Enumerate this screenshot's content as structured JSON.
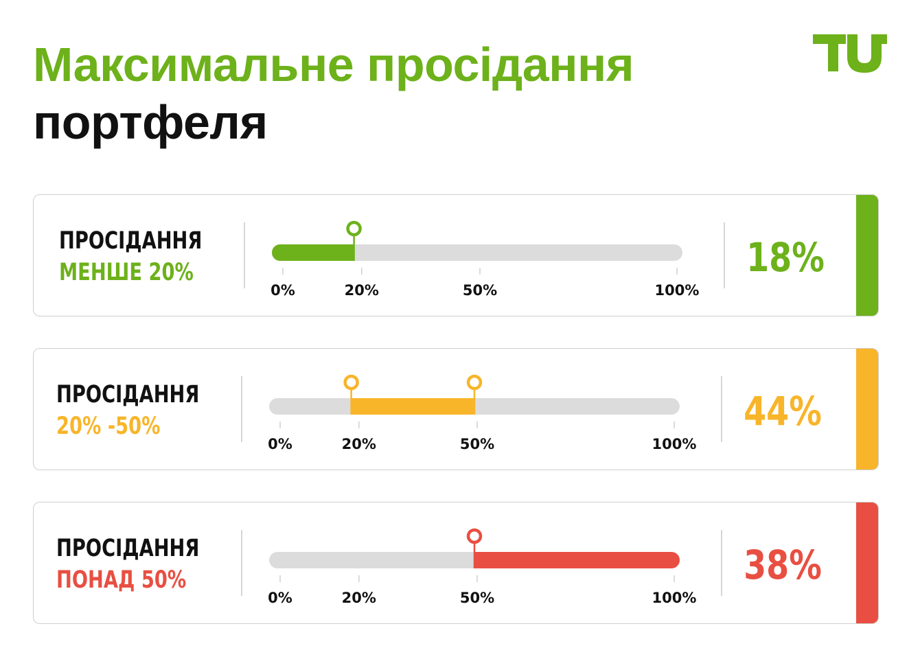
{
  "title": {
    "line1": "Максимальне просідання",
    "line2": "портфеля"
  },
  "logo": {
    "text": "TU",
    "icon": "tu-logo-icon"
  },
  "colors": {
    "green": "#6db11b",
    "orange": "#f8b52a",
    "red": "#e84f42",
    "track": "#dcdcdc"
  },
  "chart_data": {
    "type": "bar",
    "axis_ticks": [
      0,
      20,
      50,
      100
    ],
    "axis_tick_labels": [
      "0%",
      "20%",
      "50%",
      "100%"
    ],
    "xlim": [
      0,
      100
    ],
    "rows": [
      {
        "label_line1": "ПРОСІДАННЯ",
        "label_line2": "МЕНШЕ  20%",
        "range": [
          0,
          20
        ],
        "markers": [
          20
        ],
        "value": 18,
        "value_label": "18%",
        "color": "#6db11b"
      },
      {
        "label_line1": "ПРОСІДАННЯ",
        "label_line2": "20% -50%",
        "range": [
          20,
          50
        ],
        "markers": [
          20,
          50
        ],
        "value": 44,
        "value_label": "44%",
        "color": "#f8b52a"
      },
      {
        "label_line1": "ПРОСІДАННЯ",
        "label_line2": "ПОНАД 50%",
        "range": [
          50,
          100
        ],
        "markers": [
          50
        ],
        "value": 38,
        "value_label": "38%",
        "color": "#e84f42"
      }
    ]
  }
}
